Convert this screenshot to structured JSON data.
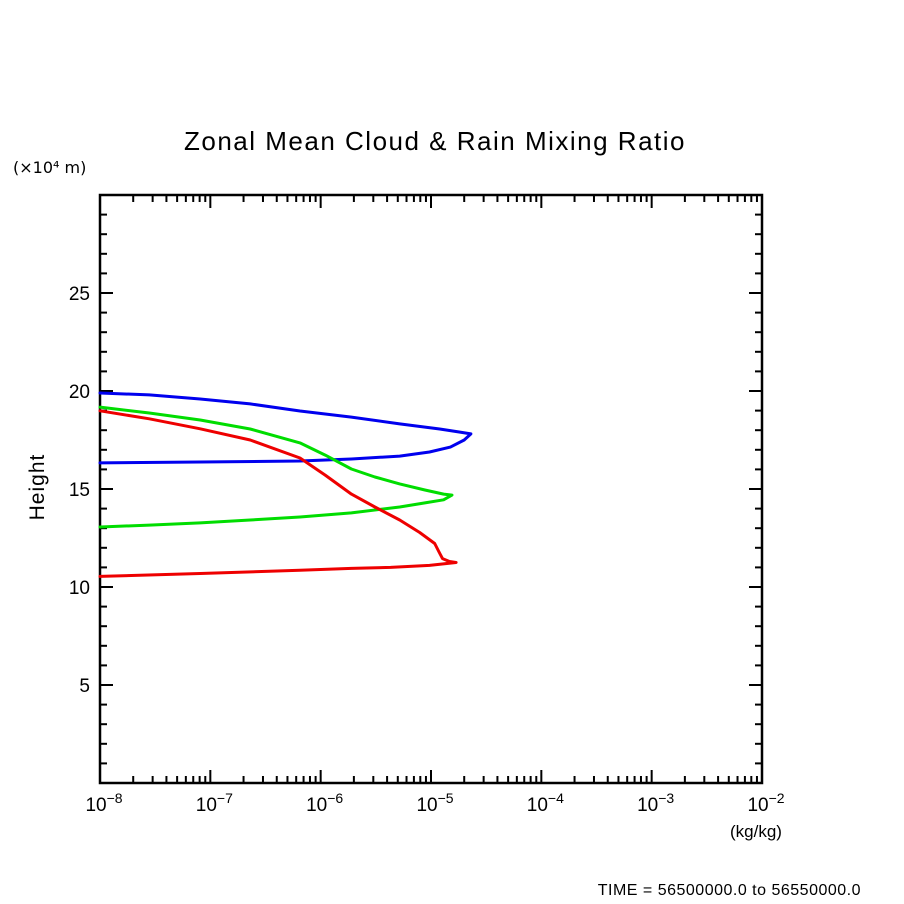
{
  "title": "Zonal Mean Cloud & Rain Mixing Ratio",
  "y_axis": {
    "unit_label": "(×10⁴ m)",
    "axis_label": "Height",
    "min": 0,
    "max": 30,
    "minor_step": 1,
    "major_step": 5,
    "tick_labels": [
      5,
      10,
      15,
      20,
      25
    ]
  },
  "x_axis": {
    "unit_label": "(kg/kg)",
    "scale": "log",
    "decade_exponents": [
      -8,
      -7,
      -6,
      -5,
      -4,
      -3,
      -2
    ]
  },
  "footer": {
    "time_label": "TIME = 56500000.0 to 56550000.0",
    "color": "#6e6e6e"
  },
  "frame_color": "#000000",
  "chart_data": {
    "type": "line",
    "title": "Zonal Mean Cloud & Rain Mixing Ratio",
    "xlabel": "(kg/kg)",
    "ylabel": "Height (×10⁴ m)",
    "x_scale": "log",
    "xlim": [
      1e-08,
      0.01
    ],
    "ylim": [
      0,
      30
    ],
    "grid": false,
    "legend": "none",
    "annotation": "TIME = 56500000.0 to 56550000.0",
    "series": [
      {
        "name": "blue-profile",
        "color": "#0000ee",
        "points_format": [
          "mixing_ratio_kg_per_kg",
          "height_1e4_m"
        ],
        "points": [
          [
            1e-08,
            19.9
          ],
          [
            2.8e-08,
            19.8
          ],
          [
            8.1e-08,
            19.59
          ],
          [
            2.3e-07,
            19.34
          ],
          [
            6.5e-07,
            18.98
          ],
          [
            1.9e-06,
            18.67
          ],
          [
            5.2e-06,
            18.32
          ],
          [
            1.2e-05,
            18.06
          ],
          [
            1.8e-05,
            17.91
          ],
          [
            2.3e-05,
            17.81
          ],
          [
            2e-05,
            17.5
          ],
          [
            1.5e-05,
            17.14
          ],
          [
            9.7e-06,
            16.89
          ],
          [
            5.2e-06,
            16.68
          ],
          [
            1.9e-06,
            16.53
          ],
          [
            6.5e-07,
            16.43
          ],
          [
            8.1e-08,
            16.38
          ],
          [
            1e-08,
            16.33
          ]
        ]
      },
      {
        "name": "green-profile",
        "color": "#00dd00",
        "points_format": [
          "mixing_ratio_kg_per_kg",
          "height_1e4_m"
        ],
        "points": [
          [
            1e-08,
            19.18
          ],
          [
            2.8e-08,
            18.88
          ],
          [
            8.1e-08,
            18.52
          ],
          [
            2.3e-07,
            18.06
          ],
          [
            6.5e-07,
            17.35
          ],
          [
            1.1e-06,
            16.73
          ],
          [
            1.9e-06,
            16.02
          ],
          [
            3.1e-06,
            15.61
          ],
          [
            5.2e-06,
            15.26
          ],
          [
            8.8e-06,
            14.95
          ],
          [
            1.3e-05,
            14.74
          ],
          [
            1.55e-05,
            14.69
          ],
          [
            1.3e-05,
            14.45
          ],
          [
            8.8e-06,
            14.29
          ],
          [
            5.2e-06,
            14.08
          ],
          [
            1.9e-06,
            13.78
          ],
          [
            6.5e-07,
            13.57
          ],
          [
            2.3e-07,
            13.42
          ],
          [
            8.1e-08,
            13.27
          ],
          [
            2.8e-08,
            13.16
          ],
          [
            1e-08,
            13.06
          ]
        ]
      },
      {
        "name": "red-profile",
        "color": "#ee0000",
        "points_format": [
          "mixing_ratio_kg_per_kg",
          "height_1e4_m"
        ],
        "points": [
          [
            1e-08,
            18.99
          ],
          [
            2.8e-08,
            18.58
          ],
          [
            8.1e-08,
            18.07
          ],
          [
            2.3e-07,
            17.5
          ],
          [
            6.5e-07,
            16.58
          ],
          [
            1.1e-06,
            15.71
          ],
          [
            1.9e-06,
            14.74
          ],
          [
            3.1e-06,
            14.08
          ],
          [
            5.2e-06,
            13.42
          ],
          [
            7.9e-06,
            12.78
          ],
          [
            1.08e-05,
            12.22
          ],
          [
            1.19e-05,
            11.76
          ],
          [
            1.27e-05,
            11.45
          ],
          [
            1.47e-05,
            11.3
          ],
          [
            1.69e-05,
            11.25
          ],
          [
            9.7e-06,
            11.1
          ],
          [
            4.3e-06,
            11.0
          ],
          [
            1.9e-06,
            10.95
          ],
          [
            6.5e-07,
            10.85
          ],
          [
            8.1e-08,
            10.69
          ],
          [
            1e-08,
            10.54
          ]
        ]
      }
    ]
  }
}
